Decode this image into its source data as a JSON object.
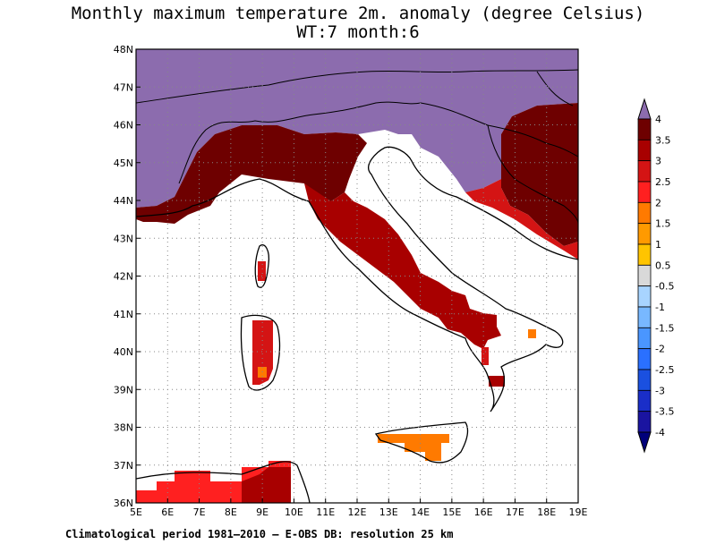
{
  "title": "Monthly maximum temperature 2m. anomaly (degree Celsius)",
  "subtitle": "WT:7 month:6",
  "footer": "Climatological period 1981–2010 — E-OBS DB: resolution 25 km",
  "map": {
    "lon_range": [
      5,
      19
    ],
    "lat_range": [
      36,
      48
    ],
    "x_ticks": [
      "5E",
      "6E",
      "7E",
      "8E",
      "9E",
      "10E",
      "11E",
      "12E",
      "13E",
      "14E",
      "15E",
      "16E",
      "17E",
      "18E",
      "19E"
    ],
    "y_ticks": [
      "36N",
      "37N",
      "38N",
      "39N",
      "40N",
      "41N",
      "42N",
      "43N",
      "44N",
      "45N",
      "46N",
      "47N",
      "48N"
    ]
  },
  "colorbar": {
    "labels": [
      "4",
      "3.5",
      "3",
      "2.5",
      "2",
      "1.5",
      "1",
      "0.5",
      "-0.5",
      "-1",
      "-1.5",
      "-2",
      "-2.5",
      "-3",
      "-3.5",
      "-4"
    ],
    "colors": [
      "#6e0000",
      "#a80000",
      "#d41414",
      "#ff2020",
      "#ff7a00",
      "#ff9a00",
      "#ffc400",
      "#d9d9d9",
      "#a8d4ff",
      "#78b8ff",
      "#4a96ff",
      "#2a70ff",
      "#1a50e0",
      "#1a2ec8",
      "#1a14a0"
    ],
    "top_color": "#8c6cae",
    "bottom_color": "#00007a"
  },
  "colors": {
    "above_4": "#8c6cae",
    "3.5_to_4": "#6e0000",
    "3_to_3.5": "#a80000",
    "2.5_to_3": "#d41414",
    "2_to_2.5": "#ff2020",
    "1.5_to_2": "#ff7a00"
  }
}
